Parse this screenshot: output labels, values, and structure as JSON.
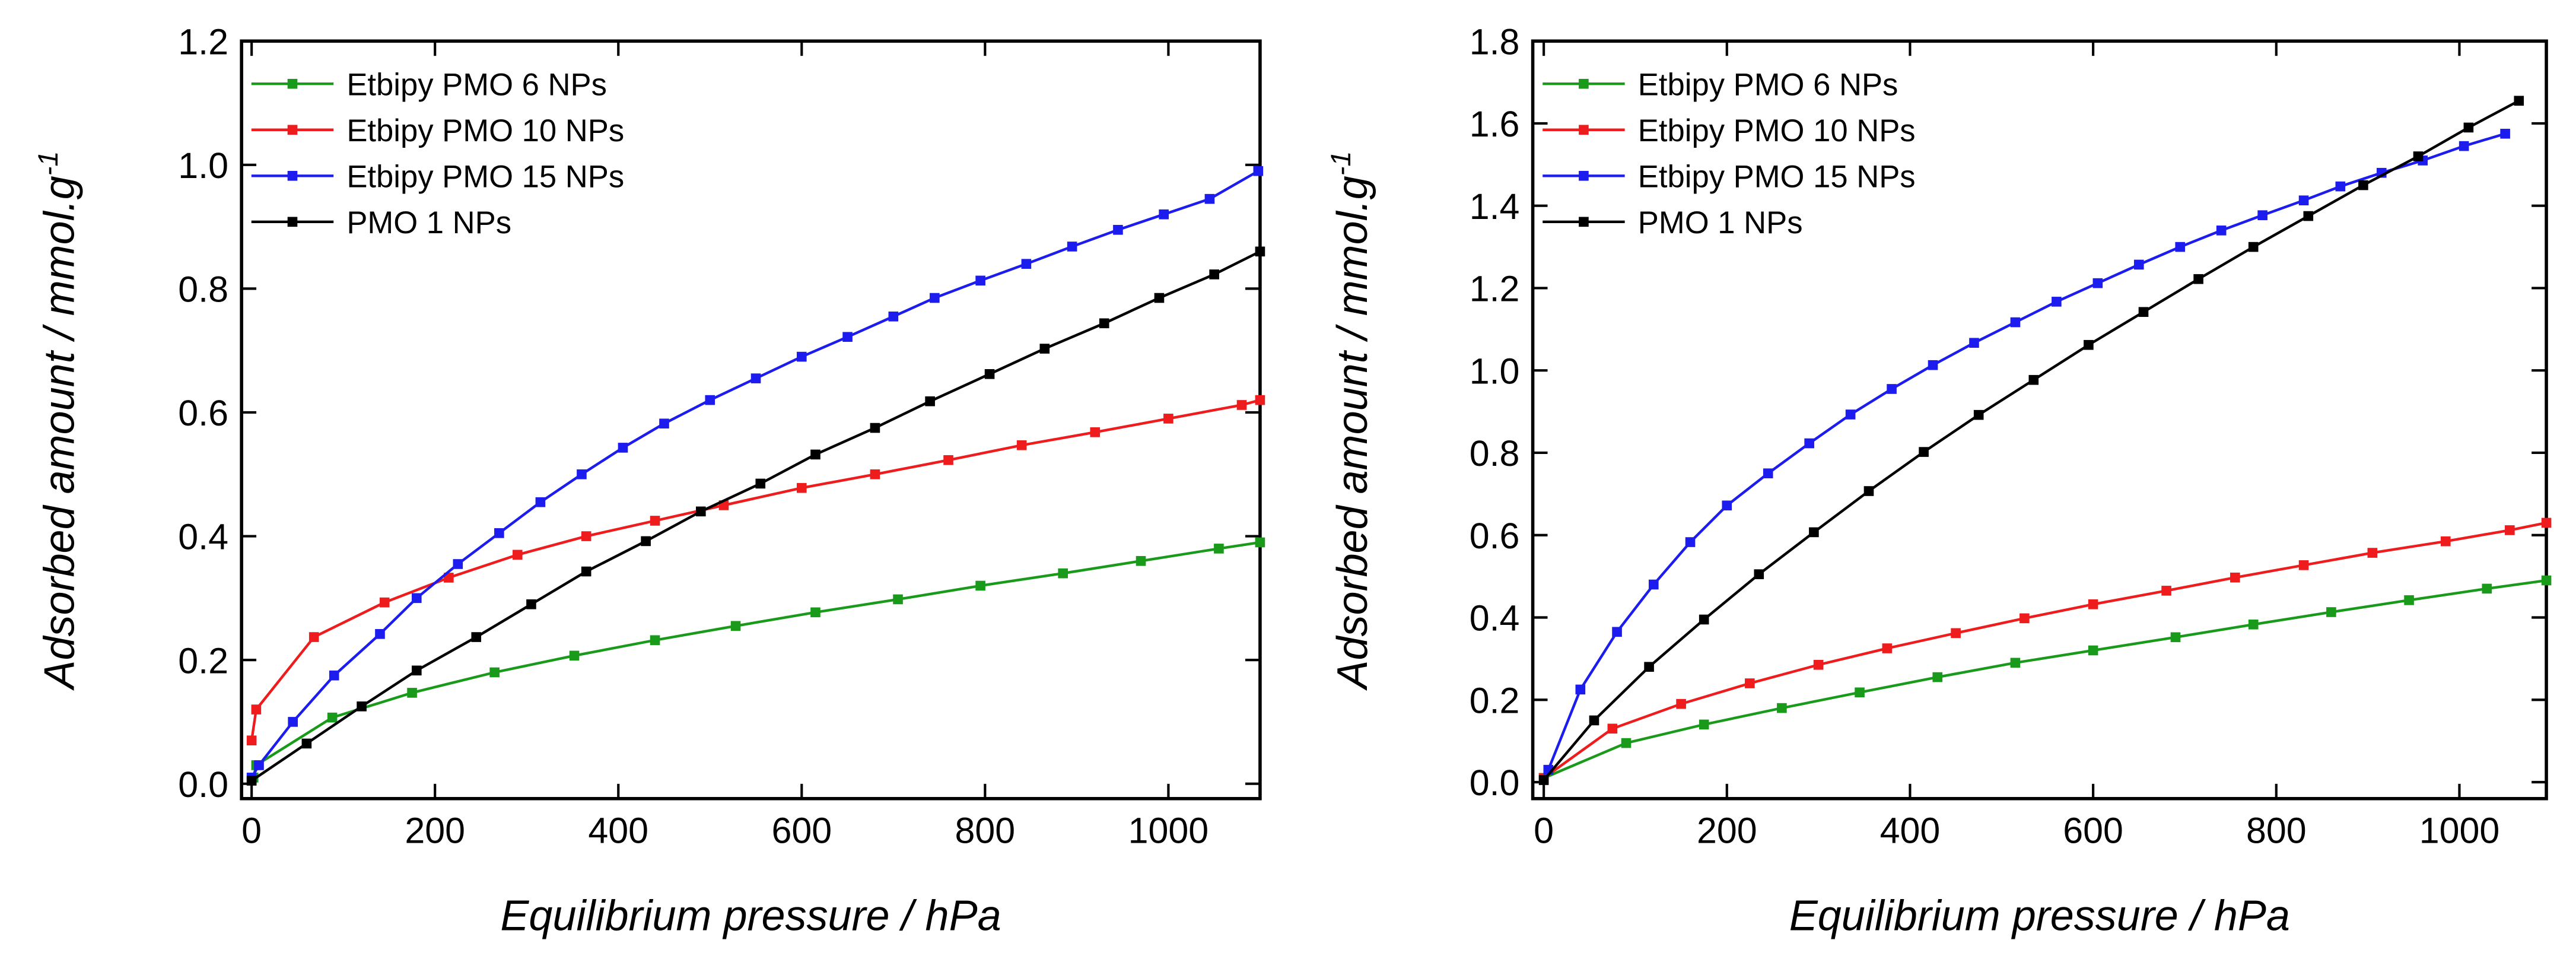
{
  "chart_data": [
    {
      "type": "line",
      "xlabel": "Equilibrium pressure / hPa",
      "ylabel": "Adsorbed amount / mmol.g",
      "ylabel_sup": "-1",
      "xlim": [
        -11,
        1100
      ],
      "ylim": [
        -0.024,
        1.2
      ],
      "xticks": [
        0,
        200,
        400,
        600,
        800,
        1000
      ],
      "yticks": [
        {
          "value": 0,
          "label": "0.0"
        },
        0.2,
        0.4,
        0.6,
        0.8,
        {
          "value": 1,
          "label": "1.0"
        },
        1.2
      ],
      "legend": "upper left",
      "series": [
        {
          "name": "Etbipy PMO 6 NPs",
          "color": "#1a9a1a",
          "x": [
            2,
            5,
            88,
            175,
            265,
            352,
            440,
            528,
            615,
            705,
            795,
            885,
            970,
            1055,
            1100
          ],
          "values": [
            0.01,
            0.03,
            0.107,
            0.147,
            0.18,
            0.207,
            0.232,
            0.255,
            0.277,
            0.298,
            0.32,
            0.34,
            0.36,
            0.38,
            0.39
          ]
        },
        {
          "name": "Etbipy PMO 10 NPs",
          "color": "#ee1c1c",
          "x": [
            0,
            5,
            68,
            145,
            215,
            290,
            365,
            440,
            515,
            600,
            680,
            760,
            840,
            920,
            1000,
            1080,
            1100
          ],
          "values": [
            0.07,
            0.12,
            0.237,
            0.293,
            0.333,
            0.37,
            0.4,
            0.425,
            0.45,
            0.478,
            0.5,
            0.523,
            0.547,
            0.568,
            0.59,
            0.612,
            0.62
          ]
        },
        {
          "name": "Etbipy PMO 15 NPs",
          "color": "#1c1cee",
          "x": [
            0,
            8,
            45,
            90,
            140,
            180,
            225,
            270,
            315,
            360,
            405,
            450,
            500,
            550,
            600,
            650,
            700,
            745,
            795,
            845,
            895,
            945,
            995,
            1045,
            1098
          ],
          "values": [
            0.01,
            0.03,
            0.1,
            0.175,
            0.242,
            0.3,
            0.355,
            0.405,
            0.455,
            0.5,
            0.543,
            0.582,
            0.62,
            0.655,
            0.69,
            0.722,
            0.755,
            0.785,
            0.813,
            0.84,
            0.868,
            0.895,
            0.92,
            0.945,
            0.99
          ]
        },
        {
          "name": "PMO 1 NPs",
          "color": "#000000",
          "x": [
            0,
            60,
            120,
            180,
            245,
            305,
            365,
            430,
            490,
            555,
            615,
            680,
            740,
            805,
            865,
            930,
            990,
            1050,
            1100
          ],
          "values": [
            0.005,
            0.065,
            0.125,
            0.183,
            0.237,
            0.29,
            0.343,
            0.392,
            0.44,
            0.485,
            0.532,
            0.575,
            0.618,
            0.662,
            0.703,
            0.744,
            0.785,
            0.823,
            0.86
          ]
        }
      ]
    },
    {
      "type": "line",
      "xlabel": "Equilibrium pressure / hPa",
      "ylabel": "Adsorbed amount / mmol.g",
      "ylabel_sup": "-1",
      "xlim": [
        -12,
        1095
      ],
      "ylim": [
        -0.04,
        1.8
      ],
      "xticks": [
        0,
        200,
        400,
        600,
        800,
        1000
      ],
      "yticks": [
        {
          "value": 0,
          "label": "0.0"
        },
        0.2,
        0.4,
        0.6,
        0.8,
        {
          "value": 1,
          "label": "1.0"
        },
        1.2,
        1.4,
        1.6,
        1.8
      ],
      "legend": "upper left",
      "series": [
        {
          "name": "Etbipy PMO 6 NPs",
          "color": "#1a9a1a",
          "x": [
            0,
            90,
            175,
            260,
            345,
            430,
            515,
            600,
            690,
            775,
            860,
            945,
            1030,
            1095
          ],
          "values": [
            0.01,
            0.095,
            0.14,
            0.18,
            0.218,
            0.255,
            0.29,
            0.32,
            0.352,
            0.383,
            0.413,
            0.442,
            0.47,
            0.49
          ]
        },
        {
          "name": "Etbipy PMO 10 NPs",
          "color": "#ee1c1c",
          "x": [
            0,
            75,
            150,
            225,
            300,
            375,
            450,
            525,
            600,
            680,
            755,
            830,
            905,
            985,
            1055,
            1095
          ],
          "values": [
            0.01,
            0.13,
            0.19,
            0.24,
            0.285,
            0.325,
            0.362,
            0.398,
            0.432,
            0.465,
            0.497,
            0.527,
            0.557,
            0.585,
            0.612,
            0.63
          ]
        },
        {
          "name": "Etbipy PMO 15 NPs",
          "color": "#1c1cee",
          "x": [
            5,
            40,
            80,
            120,
            160,
            200,
            245,
            290,
            335,
            380,
            425,
            470,
            515,
            560,
            605,
            650,
            695,
            740,
            785,
            830,
            870,
            915,
            960,
            1005,
            1050
          ],
          "values": [
            0.03,
            0.225,
            0.365,
            0.48,
            0.583,
            0.672,
            0.75,
            0.823,
            0.893,
            0.955,
            1.013,
            1.067,
            1.117,
            1.167,
            1.212,
            1.257,
            1.3,
            1.34,
            1.377,
            1.413,
            1.447,
            1.48,
            1.51,
            1.545,
            1.575
          ]
        },
        {
          "name": "PMO 1 NPs",
          "color": "#000000",
          "x": [
            0,
            55,
            115,
            175,
            235,
            295,
            355,
            415,
            475,
            535,
            595,
            655,
            715,
            775,
            835,
            895,
            955,
            1010,
            1065
          ],
          "values": [
            0.005,
            0.15,
            0.28,
            0.395,
            0.505,
            0.607,
            0.707,
            0.802,
            0.892,
            0.977,
            1.062,
            1.142,
            1.222,
            1.3,
            1.375,
            1.45,
            1.52,
            1.59,
            1.655
          ]
        }
      ]
    }
  ]
}
